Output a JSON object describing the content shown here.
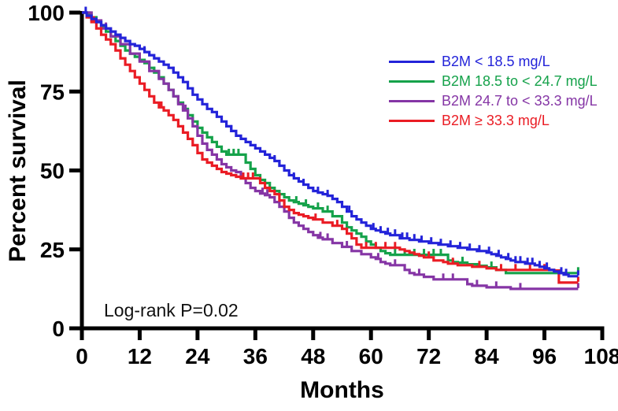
{
  "chart_data": {
    "type": "line",
    "subtype": "kaplan-meier-step",
    "title": "",
    "xlabel": "Months",
    "ylabel": "Percent survival",
    "annotation": "Log-rank P=0.02",
    "xlim": [
      0,
      108
    ],
    "ylim": [
      0,
      100
    ],
    "x_ticks": [
      0,
      12,
      24,
      36,
      48,
      60,
      72,
      84,
      96,
      108
    ],
    "y_ticks": [
      0,
      25,
      50,
      75,
      100
    ],
    "grid": false,
    "legend_position": "top-right",
    "axis_color": "#000000",
    "series": [
      {
        "name": "B2M < 18.5 mg/L",
        "color": "#2323d9",
        "points": [
          [
            0,
            100
          ],
          [
            1,
            99
          ],
          [
            2,
            98
          ],
          [
            3,
            97
          ],
          [
            4,
            96
          ],
          [
            5,
            95
          ],
          [
            6,
            94
          ],
          [
            7,
            93
          ],
          [
            8,
            92
          ],
          [
            9,
            91
          ],
          [
            10,
            90
          ],
          [
            11,
            89.5
          ],
          [
            12,
            88.5
          ],
          [
            13,
            87.5
          ],
          [
            14,
            86.5
          ],
          [
            15,
            85.5
          ],
          [
            16,
            84.5
          ],
          [
            17,
            83.5
          ],
          [
            18,
            82.5
          ],
          [
            19,
            81
          ],
          [
            20,
            79.5
          ],
          [
            21,
            78
          ],
          [
            22,
            76
          ],
          [
            23,
            74
          ],
          [
            24,
            72.5
          ],
          [
            25,
            71
          ],
          [
            26,
            69.5
          ],
          [
            27,
            68.5
          ],
          [
            28,
            67
          ],
          [
            29,
            65.5
          ],
          [
            30,
            64
          ],
          [
            31,
            62.5
          ],
          [
            32,
            61
          ],
          [
            33,
            60
          ],
          [
            34,
            59
          ],
          [
            35,
            58
          ],
          [
            36,
            57
          ],
          [
            37,
            56
          ],
          [
            38,
            55
          ],
          [
            39,
            54
          ],
          [
            40,
            53
          ],
          [
            41,
            51.5
          ],
          [
            42,
            50
          ],
          [
            43,
            48.5
          ],
          [
            44,
            47.5
          ],
          [
            45,
            46.5
          ],
          [
            46,
            45.5
          ],
          [
            47,
            44.5
          ],
          [
            48,
            43.5
          ],
          [
            49,
            43
          ],
          [
            50,
            42.5
          ],
          [
            51,
            42
          ],
          [
            52,
            41
          ],
          [
            53,
            40
          ],
          [
            54,
            38.5
          ],
          [
            55,
            37
          ],
          [
            56,
            35.5
          ],
          [
            57,
            34.5
          ],
          [
            58,
            33.5
          ],
          [
            59,
            32.5
          ],
          [
            60,
            31.5
          ],
          [
            61,
            31
          ],
          [
            62,
            30.5
          ],
          [
            63,
            30
          ],
          [
            64,
            29.5
          ],
          [
            66,
            28.5
          ],
          [
            68,
            28
          ],
          [
            70,
            27.5
          ],
          [
            72,
            27
          ],
          [
            74,
            26.5
          ],
          [
            76,
            26
          ],
          [
            78,
            25.5
          ],
          [
            80,
            25
          ],
          [
            82,
            24.5
          ],
          [
            84,
            24
          ],
          [
            85,
            23.5
          ],
          [
            86,
            23
          ],
          [
            87,
            22.5
          ],
          [
            88,
            22
          ],
          [
            89,
            21.5
          ],
          [
            90,
            21
          ],
          [
            92,
            20.5
          ],
          [
            94,
            20
          ],
          [
            95,
            19.5
          ],
          [
            96,
            19
          ],
          [
            97,
            18.5
          ],
          [
            98,
            18
          ],
          [
            99,
            17.5
          ],
          [
            100,
            17
          ],
          [
            101,
            16.5
          ],
          [
            103,
            16.5
          ]
        ],
        "censor_times": [
          0.8,
          13,
          19,
          31,
          40,
          44,
          46,
          49,
          51,
          55.5,
          60.5,
          62,
          63.5,
          65,
          66.5,
          67.5,
          69,
          70.5,
          72.5,
          74.5,
          76.5,
          78.5,
          80.5,
          82.5,
          84.5,
          86.5,
          88.5,
          90,
          91,
          92.5,
          93.5,
          95,
          96.5,
          99.5,
          100.5,
          103
        ]
      },
      {
        "name": "B2M 18.5 to < 24.7 mg/L",
        "color": "#15a24a",
        "points": [
          [
            0,
            100
          ],
          [
            1.5,
            98.5
          ],
          [
            3,
            97
          ],
          [
            4,
            95.5
          ],
          [
            5,
            94
          ],
          [
            6,
            92.5
          ],
          [
            7,
            91
          ],
          [
            8,
            89.5
          ],
          [
            9,
            88
          ],
          [
            10,
            87
          ],
          [
            11,
            86
          ],
          [
            12,
            85
          ],
          [
            13,
            84
          ],
          [
            14,
            82.5
          ],
          [
            15,
            81
          ],
          [
            16,
            79.5
          ],
          [
            17,
            77.5
          ],
          [
            18,
            75.5
          ],
          [
            19,
            73.5
          ],
          [
            20,
            71.5
          ],
          [
            21,
            69.5
          ],
          [
            22,
            67.5
          ],
          [
            23,
            65.5
          ],
          [
            24,
            63.5
          ],
          [
            25,
            62
          ],
          [
            26,
            60.5
          ],
          [
            27,
            59
          ],
          [
            28,
            57.5
          ],
          [
            29,
            56
          ],
          [
            30,
            55
          ],
          [
            34,
            52.5
          ],
          [
            35,
            50.5
          ],
          [
            36,
            48.5
          ],
          [
            37,
            47
          ],
          [
            38,
            46
          ],
          [
            39,
            44.5
          ],
          [
            40,
            43.5
          ],
          [
            41,
            42.5
          ],
          [
            42,
            41.5
          ],
          [
            43,
            40.5
          ],
          [
            44,
            40
          ],
          [
            45,
            39.5
          ],
          [
            46,
            39
          ],
          [
            47,
            38.5
          ],
          [
            48,
            38
          ],
          [
            50,
            37
          ],
          [
            52,
            35.5
          ],
          [
            54,
            33.5
          ],
          [
            55,
            32
          ],
          [
            56,
            31
          ],
          [
            57,
            30
          ],
          [
            58,
            29
          ],
          [
            59,
            27.5
          ],
          [
            60,
            26.5
          ],
          [
            61,
            25.5
          ],
          [
            62,
            24.5
          ],
          [
            63,
            23.8
          ],
          [
            64,
            23.3
          ],
          [
            76,
            21.5
          ],
          [
            77,
            21
          ],
          [
            78,
            20.8
          ],
          [
            80,
            20.3
          ],
          [
            82,
            19.8
          ],
          [
            84,
            19.3
          ],
          [
            86,
            18.5
          ],
          [
            88,
            17.5
          ],
          [
            103,
            17.5
          ]
        ],
        "censor_times": [
          2,
          15,
          30.5,
          31.5,
          32.5,
          44.5,
          46.5,
          49,
          51,
          65,
          67,
          69,
          71,
          73,
          74.5,
          79,
          85,
          103
        ]
      },
      {
        "name": "B2M 24.7 to < 33.3 mg/L",
        "color": "#8535a5",
        "points": [
          [
            0,
            100
          ],
          [
            2,
            97.5
          ],
          [
            4,
            95
          ],
          [
            6,
            92.5
          ],
          [
            8,
            90
          ],
          [
            10,
            87
          ],
          [
            12,
            84.5
          ],
          [
            14,
            81.5
          ],
          [
            16,
            79
          ],
          [
            17,
            77.5
          ],
          [
            18,
            75.5
          ],
          [
            19,
            73.5
          ],
          [
            20,
            71
          ],
          [
            21,
            69
          ],
          [
            22,
            66.5
          ],
          [
            23,
            64
          ],
          [
            24,
            61
          ],
          [
            25,
            58.5
          ],
          [
            26,
            56.5
          ],
          [
            27,
            55
          ],
          [
            28,
            53.5
          ],
          [
            29,
            52
          ],
          [
            30,
            51
          ],
          [
            31,
            50
          ],
          [
            32,
            49.5
          ],
          [
            33,
            47.5
          ],
          [
            34,
            46
          ],
          [
            35,
            44.5
          ],
          [
            36,
            43.5
          ],
          [
            37,
            42.7
          ],
          [
            38,
            42.2
          ],
          [
            39,
            41.5
          ],
          [
            40,
            40
          ],
          [
            41,
            38.5
          ],
          [
            42,
            37
          ],
          [
            43,
            35
          ],
          [
            44,
            33.5
          ],
          [
            45,
            32.5
          ],
          [
            46,
            31.5
          ],
          [
            47,
            30.5
          ],
          [
            48,
            29.5
          ],
          [
            49,
            28.7
          ],
          [
            50,
            28.2
          ],
          [
            52,
            27
          ],
          [
            54,
            25.8
          ],
          [
            56,
            24.5
          ],
          [
            58,
            23.5
          ],
          [
            60,
            22.5
          ],
          [
            61,
            22
          ],
          [
            62,
            21
          ],
          [
            63,
            20.5
          ],
          [
            64,
            20
          ],
          [
            67,
            18.5
          ],
          [
            68,
            17.5
          ],
          [
            69,
            17
          ],
          [
            71,
            16.3
          ],
          [
            73,
            15.5
          ],
          [
            80,
            14
          ],
          [
            81,
            13.5
          ],
          [
            84,
            13
          ],
          [
            89,
            12.5
          ],
          [
            103,
            12.5
          ]
        ],
        "censor_times": [
          5,
          21.5,
          37.5,
          38.5,
          49.5,
          51,
          55,
          61.5,
          65,
          70,
          75,
          77,
          82,
          86,
          91,
          103
        ]
      },
      {
        "name": "B2M ≥ 33.3 mg/L",
        "color": "#ea1c24",
        "points": [
          [
            0,
            100
          ],
          [
            1,
            98.5
          ],
          [
            2,
            97
          ],
          [
            3,
            95
          ],
          [
            4,
            93
          ],
          [
            5,
            91.5
          ],
          [
            6,
            90
          ],
          [
            7,
            88
          ],
          [
            8,
            85.5
          ],
          [
            9,
            83.5
          ],
          [
            10,
            81.5
          ],
          [
            11,
            79.5
          ],
          [
            12,
            77.5
          ],
          [
            13,
            75.5
          ],
          [
            14,
            73.5
          ],
          [
            15,
            71.5
          ],
          [
            16,
            70
          ],
          [
            17,
            69
          ],
          [
            18,
            67.5
          ],
          [
            19,
            66
          ],
          [
            20,
            64
          ],
          [
            21,
            62
          ],
          [
            22,
            60
          ],
          [
            23,
            58
          ],
          [
            24,
            55.5
          ],
          [
            25,
            53.5
          ],
          [
            26,
            52.5
          ],
          [
            27,
            51.5
          ],
          [
            28,
            50.5
          ],
          [
            29,
            49.5
          ],
          [
            30,
            49
          ],
          [
            31,
            48.5
          ],
          [
            32,
            48
          ],
          [
            33,
            47.5
          ],
          [
            37,
            46
          ],
          [
            38,
            44.5
          ],
          [
            39,
            43.5
          ],
          [
            40,
            42.5
          ],
          [
            41,
            40.5
          ],
          [
            42,
            38.5
          ],
          [
            43,
            37.5
          ],
          [
            44,
            36.5
          ],
          [
            45,
            36
          ],
          [
            46,
            35.5
          ],
          [
            47,
            35
          ],
          [
            48,
            34.5
          ],
          [
            50,
            33.5
          ],
          [
            52,
            32.5
          ],
          [
            54,
            31.5
          ],
          [
            55,
            30
          ],
          [
            56,
            28.5
          ],
          [
            57,
            26.5
          ],
          [
            58,
            25.5
          ],
          [
            66,
            25
          ],
          [
            67,
            24.5
          ],
          [
            68,
            24
          ],
          [
            69,
            23.5
          ],
          [
            70,
            23
          ],
          [
            71,
            22.5
          ],
          [
            73,
            21.5
          ],
          [
            75,
            21
          ],
          [
            76,
            20.5
          ],
          [
            78,
            20
          ],
          [
            81,
            19.5
          ],
          [
            84,
            19
          ],
          [
            86,
            18.5
          ],
          [
            98,
            18.3
          ],
          [
            99,
            14.5
          ],
          [
            103,
            14.5
          ]
        ],
        "censor_times": [
          2.5,
          16.5,
          33.5,
          34.5,
          35.5,
          48.5,
          53,
          59,
          61,
          63,
          65,
          72,
          77,
          82.5,
          87,
          90,
          93,
          96,
          103
        ]
      }
    ]
  }
}
